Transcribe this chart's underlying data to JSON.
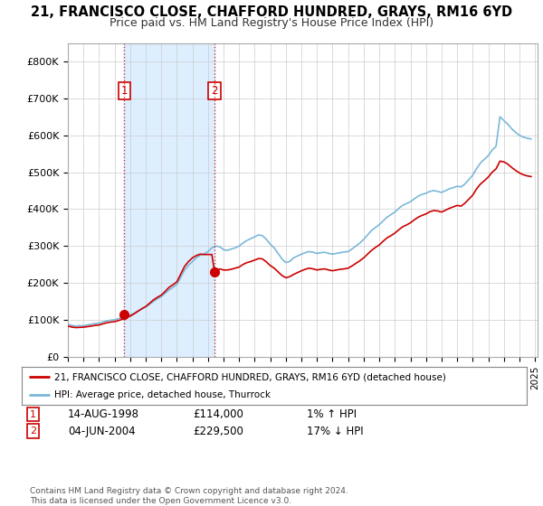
{
  "title_line1": "21, FRANCISCO CLOSE, CHAFFORD HUNDRED, GRAYS, RM16 6YD",
  "title_line2": "Price paid vs. HM Land Registry's House Price Index (HPI)",
  "ylim": [
    0,
    850000
  ],
  "yticks": [
    0,
    100000,
    200000,
    300000,
    400000,
    500000,
    600000,
    700000,
    800000
  ],
  "ytick_labels": [
    "£0",
    "£100K",
    "£200K",
    "£300K",
    "£400K",
    "£500K",
    "£600K",
    "£700K",
    "£800K"
  ],
  "hpi_color": "#7ab8d9",
  "price_color": "#cc0000",
  "shade_color": "#ddeeff",
  "transaction1_date": [
    1998,
    8,
    14
  ],
  "transaction1_price": 114000,
  "transaction2_date": [
    2004,
    6,
    4
  ],
  "transaction2_price": 229500,
  "legend_label1": "21, FRANCISCO CLOSE, CHAFFORD HUNDRED, GRAYS, RM16 6YD (detached house)",
  "legend_label2": "HPI: Average price, detached house, Thurrock",
  "t1_date_str": "14-AUG-1998",
  "t1_price_str": "£114,000",
  "t1_hpi_str": "1% ↑ HPI",
  "t2_date_str": "04-JUN-2004",
  "t2_price_str": "£229,500",
  "t2_hpi_str": "17% ↓ HPI",
  "footnote": "Contains HM Land Registry data © Crown copyright and database right 2024.\nThis data is licensed under the Open Government Licence v3.0.",
  "background_color": "#ffffff",
  "grid_color": "#cccccc",
  "hpi_key_points": [
    [
      1995,
      1,
      88000
    ],
    [
      1995,
      4,
      85000
    ],
    [
      1995,
      7,
      83000
    ],
    [
      1995,
      10,
      84000
    ],
    [
      1996,
      1,
      84000
    ],
    [
      1996,
      4,
      86000
    ],
    [
      1996,
      7,
      88000
    ],
    [
      1996,
      10,
      90000
    ],
    [
      1997,
      1,
      91000
    ],
    [
      1997,
      4,
      94000
    ],
    [
      1997,
      7,
      97000
    ],
    [
      1997,
      10,
      99000
    ],
    [
      1998,
      1,
      100000
    ],
    [
      1998,
      4,
      103000
    ],
    [
      1998,
      7,
      107000
    ],
    [
      1998,
      10,
      110000
    ],
    [
      1999,
      1,
      113000
    ],
    [
      1999,
      4,
      118000
    ],
    [
      1999,
      7,
      124000
    ],
    [
      1999,
      10,
      130000
    ],
    [
      2000,
      1,
      135000
    ],
    [
      2000,
      4,
      142000
    ],
    [
      2000,
      7,
      150000
    ],
    [
      2000,
      10,
      157000
    ],
    [
      2001,
      1,
      163000
    ],
    [
      2001,
      4,
      172000
    ],
    [
      2001,
      7,
      181000
    ],
    [
      2001,
      10,
      188000
    ],
    [
      2002,
      1,
      196000
    ],
    [
      2002,
      4,
      215000
    ],
    [
      2002,
      7,
      235000
    ],
    [
      2002,
      10,
      248000
    ],
    [
      2003,
      1,
      258000
    ],
    [
      2003,
      4,
      268000
    ],
    [
      2003,
      7,
      275000
    ],
    [
      2003,
      10,
      278000
    ],
    [
      2004,
      1,
      285000
    ],
    [
      2004,
      4,
      295000
    ],
    [
      2004,
      7,
      300000
    ],
    [
      2004,
      10,
      298000
    ],
    [
      2005,
      1,
      290000
    ],
    [
      2005,
      4,
      288000
    ],
    [
      2005,
      7,
      292000
    ],
    [
      2005,
      10,
      295000
    ],
    [
      2006,
      1,
      300000
    ],
    [
      2006,
      4,
      308000
    ],
    [
      2006,
      7,
      315000
    ],
    [
      2006,
      10,
      320000
    ],
    [
      2007,
      1,
      325000
    ],
    [
      2007,
      4,
      330000
    ],
    [
      2007,
      7,
      328000
    ],
    [
      2007,
      10,
      318000
    ],
    [
      2008,
      1,
      305000
    ],
    [
      2008,
      4,
      295000
    ],
    [
      2008,
      7,
      280000
    ],
    [
      2008,
      10,
      265000
    ],
    [
      2009,
      1,
      255000
    ],
    [
      2009,
      4,
      258000
    ],
    [
      2009,
      7,
      268000
    ],
    [
      2009,
      10,
      273000
    ],
    [
      2010,
      1,
      278000
    ],
    [
      2010,
      4,
      282000
    ],
    [
      2010,
      7,
      285000
    ],
    [
      2010,
      10,
      283000
    ],
    [
      2011,
      1,
      280000
    ],
    [
      2011,
      4,
      282000
    ],
    [
      2011,
      7,
      283000
    ],
    [
      2011,
      10,
      280000
    ],
    [
      2012,
      1,
      278000
    ],
    [
      2012,
      4,
      280000
    ],
    [
      2012,
      7,
      282000
    ],
    [
      2012,
      10,
      284000
    ],
    [
      2013,
      1,
      285000
    ],
    [
      2013,
      4,
      292000
    ],
    [
      2013,
      7,
      300000
    ],
    [
      2013,
      10,
      308000
    ],
    [
      2014,
      1,
      318000
    ],
    [
      2014,
      4,
      330000
    ],
    [
      2014,
      7,
      342000
    ],
    [
      2014,
      10,
      350000
    ],
    [
      2015,
      1,
      358000
    ],
    [
      2015,
      4,
      368000
    ],
    [
      2015,
      7,
      378000
    ],
    [
      2015,
      10,
      385000
    ],
    [
      2016,
      1,
      392000
    ],
    [
      2016,
      4,
      402000
    ],
    [
      2016,
      7,
      410000
    ],
    [
      2016,
      10,
      415000
    ],
    [
      2017,
      1,
      420000
    ],
    [
      2017,
      4,
      428000
    ],
    [
      2017,
      7,
      435000
    ],
    [
      2017,
      10,
      440000
    ],
    [
      2018,
      1,
      443000
    ],
    [
      2018,
      4,
      448000
    ],
    [
      2018,
      7,
      450000
    ],
    [
      2018,
      10,
      448000
    ],
    [
      2019,
      1,
      445000
    ],
    [
      2019,
      4,
      450000
    ],
    [
      2019,
      7,
      455000
    ],
    [
      2019,
      10,
      458000
    ],
    [
      2020,
      1,
      462000
    ],
    [
      2020,
      4,
      460000
    ],
    [
      2020,
      7,
      468000
    ],
    [
      2020,
      10,
      480000
    ],
    [
      2021,
      1,
      492000
    ],
    [
      2021,
      4,
      510000
    ],
    [
      2021,
      7,
      525000
    ],
    [
      2021,
      10,
      535000
    ],
    [
      2022,
      1,
      545000
    ],
    [
      2022,
      4,
      560000
    ],
    [
      2022,
      7,
      570000
    ],
    [
      2022,
      10,
      650000
    ],
    [
      2023,
      1,
      640000
    ],
    [
      2023,
      4,
      630000
    ],
    [
      2023,
      7,
      618000
    ],
    [
      2023,
      10,
      608000
    ],
    [
      2024,
      1,
      600000
    ],
    [
      2024,
      4,
      595000
    ],
    [
      2024,
      7,
      592000
    ],
    [
      2024,
      10,
      590000
    ]
  ],
  "price_key_points": [
    [
      1995,
      1,
      83000
    ],
    [
      1995,
      4,
      80500
    ],
    [
      1995,
      7,
      79000
    ],
    [
      1995,
      10,
      79500
    ],
    [
      1996,
      1,
      80000
    ],
    [
      1996,
      4,
      81500
    ],
    [
      1996,
      7,
      83000
    ],
    [
      1996,
      10,
      85000
    ],
    [
      1997,
      1,
      86000
    ],
    [
      1997,
      4,
      89000
    ],
    [
      1997,
      7,
      92000
    ],
    [
      1997,
      10,
      94000
    ],
    [
      1998,
      1,
      95000
    ],
    [
      1998,
      4,
      98000
    ],
    [
      1998,
      7,
      101500
    ],
    [
      1998,
      8,
      114000
    ],
    [
      1998,
      10,
      107000
    ],
    [
      1999,
      1,
      110000
    ],
    [
      1999,
      4,
      116000
    ],
    [
      1999,
      7,
      123000
    ],
    [
      1999,
      10,
      130000
    ],
    [
      2000,
      1,
      136000
    ],
    [
      2000,
      4,
      145000
    ],
    [
      2000,
      7,
      154000
    ],
    [
      2000,
      10,
      161000
    ],
    [
      2001,
      1,
      167000
    ],
    [
      2001,
      4,
      177000
    ],
    [
      2001,
      7,
      188000
    ],
    [
      2001,
      10,
      195000
    ],
    [
      2002,
      1,
      203000
    ],
    [
      2002,
      4,
      224000
    ],
    [
      2002,
      7,
      245000
    ],
    [
      2002,
      10,
      258000
    ],
    [
      2003,
      1,
      268000
    ],
    [
      2003,
      4,
      274000
    ],
    [
      2003,
      7,
      278000
    ],
    [
      2003,
      10,
      277000
    ],
    [
      2004,
      4,
      277000
    ],
    [
      2004,
      6,
      229500
    ],
    [
      2004,
      7,
      232000
    ],
    [
      2004,
      10,
      238000
    ],
    [
      2005,
      1,
      235000
    ],
    [
      2005,
      4,
      235000
    ],
    [
      2005,
      7,
      237000
    ],
    [
      2005,
      10,
      240000
    ],
    [
      2006,
      1,
      243000
    ],
    [
      2006,
      4,
      250000
    ],
    [
      2006,
      7,
      255000
    ],
    [
      2006,
      10,
      258000
    ],
    [
      2007,
      1,
      262000
    ],
    [
      2007,
      4,
      266000
    ],
    [
      2007,
      7,
      265000
    ],
    [
      2007,
      10,
      257000
    ],
    [
      2008,
      1,
      247000
    ],
    [
      2008,
      4,
      240000
    ],
    [
      2008,
      7,
      230000
    ],
    [
      2008,
      10,
      220000
    ],
    [
      2009,
      1,
      214000
    ],
    [
      2009,
      4,
      217000
    ],
    [
      2009,
      7,
      223000
    ],
    [
      2009,
      10,
      228000
    ],
    [
      2010,
      1,
      233000
    ],
    [
      2010,
      4,
      237000
    ],
    [
      2010,
      7,
      240000
    ],
    [
      2010,
      10,
      238000
    ],
    [
      2011,
      1,
      235000
    ],
    [
      2011,
      4,
      237000
    ],
    [
      2011,
      7,
      238000
    ],
    [
      2011,
      10,
      235000
    ],
    [
      2012,
      1,
      233000
    ],
    [
      2012,
      4,
      235000
    ],
    [
      2012,
      7,
      237000
    ],
    [
      2012,
      10,
      238000
    ],
    [
      2013,
      1,
      240000
    ],
    [
      2013,
      4,
      246000
    ],
    [
      2013,
      7,
      253000
    ],
    [
      2013,
      10,
      260000
    ],
    [
      2014,
      1,
      268000
    ],
    [
      2014,
      4,
      278000
    ],
    [
      2014,
      7,
      288000
    ],
    [
      2014,
      10,
      296000
    ],
    [
      2015,
      1,
      303000
    ],
    [
      2015,
      4,
      313000
    ],
    [
      2015,
      7,
      322000
    ],
    [
      2015,
      10,
      328000
    ],
    [
      2016,
      1,
      335000
    ],
    [
      2016,
      4,
      344000
    ],
    [
      2016,
      7,
      352000
    ],
    [
      2016,
      10,
      357000
    ],
    [
      2017,
      1,
      363000
    ],
    [
      2017,
      4,
      371000
    ],
    [
      2017,
      7,
      378000
    ],
    [
      2017,
      10,
      383000
    ],
    [
      2018,
      1,
      387000
    ],
    [
      2018,
      4,
      393000
    ],
    [
      2018,
      7,
      396000
    ],
    [
      2018,
      10,
      395000
    ],
    [
      2019,
      1,
      392000
    ],
    [
      2019,
      4,
      397000
    ],
    [
      2019,
      7,
      402000
    ],
    [
      2019,
      10,
      406000
    ],
    [
      2020,
      1,
      410000
    ],
    [
      2020,
      4,
      408000
    ],
    [
      2020,
      7,
      416000
    ],
    [
      2020,
      10,
      427000
    ],
    [
      2021,
      1,
      438000
    ],
    [
      2021,
      4,
      455000
    ],
    [
      2021,
      7,
      468000
    ],
    [
      2021,
      10,
      477000
    ],
    [
      2022,
      1,
      487000
    ],
    [
      2022,
      4,
      500000
    ],
    [
      2022,
      7,
      509000
    ],
    [
      2022,
      10,
      530000
    ],
    [
      2023,
      1,
      528000
    ],
    [
      2023,
      4,
      522000
    ],
    [
      2023,
      7,
      513000
    ],
    [
      2023,
      10,
      505000
    ],
    [
      2024,
      1,
      498000
    ],
    [
      2024,
      4,
      493000
    ],
    [
      2024,
      7,
      490000
    ],
    [
      2024,
      10,
      488000
    ]
  ]
}
